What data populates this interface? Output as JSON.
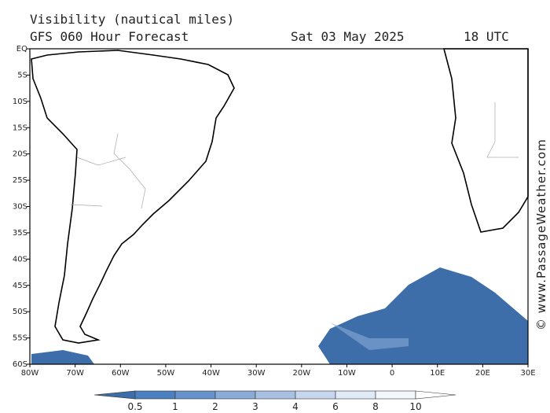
{
  "header": {
    "title": "Visibility (nautical miles)",
    "subtitle": "GFS 060 Hour Forecast",
    "date": "Sat 03 May 2025",
    "time": "18 UTC"
  },
  "map": {
    "lat_labels": [
      "EQ",
      "5S",
      "10S",
      "15S",
      "20S",
      "25S",
      "30S",
      "35S",
      "40S",
      "45S",
      "50S",
      "55S",
      "60S"
    ],
    "lon_labels": [
      "80W",
      "70W",
      "60W",
      "50W",
      "40W",
      "30W",
      "20W",
      "10W",
      "0",
      "10E",
      "20E",
      "30E"
    ],
    "watermark": "© www.PassageWeather.com"
  },
  "colorbar": {
    "ticks": [
      "0.5",
      "1",
      "2",
      "3",
      "4",
      "6",
      "8",
      "10"
    ]
  }
}
